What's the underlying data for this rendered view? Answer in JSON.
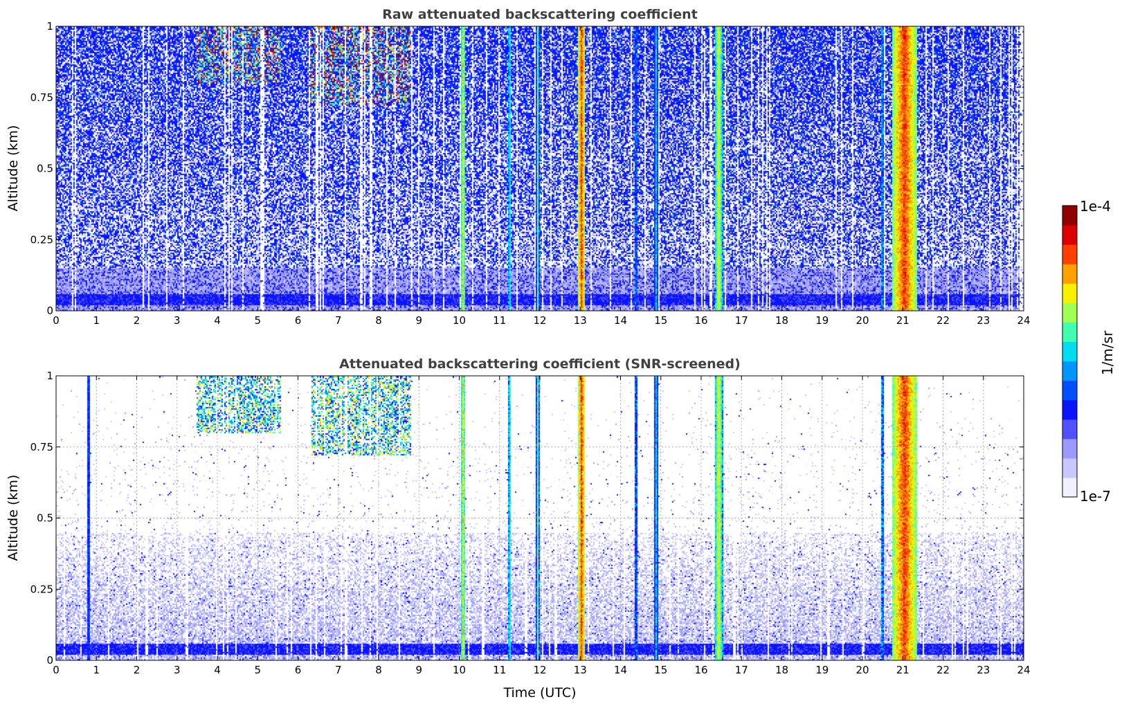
{
  "chart_data": [
    {
      "type": "heatmap",
      "title": "Raw attenuated backscattering coefficient",
      "xlabel": "",
      "ylabel": "Altitude (km)",
      "xlim": [
        0,
        24
      ],
      "ylim": [
        0,
        1
      ],
      "xticks": [
        "0",
        "1",
        "2",
        "3",
        "4",
        "5",
        "6",
        "7",
        "8",
        "9",
        "10",
        "11",
        "12",
        "13",
        "14",
        "15",
        "16",
        "17",
        "18",
        "19",
        "20",
        "21",
        "22",
        "23",
        "24"
      ],
      "yticks": [
        "0",
        "0.25",
        "0.5",
        "0.75",
        "1"
      ],
      "grid": false,
      "screened": false,
      "colorscale": "jet-log",
      "cloud_columns_utc": [
        {
          "t": 10.1,
          "width": 0.1,
          "level": 0.72,
          "base_km": 0.0
        },
        {
          "t": 11.25,
          "width": 0.08,
          "level": 0.6,
          "base_km": 0.0
        },
        {
          "t": 11.95,
          "width": 0.08,
          "level": 0.62,
          "base_km": 0.0
        },
        {
          "t": 13.05,
          "width": 0.18,
          "level": 0.85,
          "base_km": 0.0
        },
        {
          "t": 14.4,
          "width": 0.1,
          "level": 0.5,
          "base_km": 0.0
        },
        {
          "t": 14.9,
          "width": 0.1,
          "level": 0.52,
          "base_km": 0.0
        },
        {
          "t": 16.45,
          "width": 0.2,
          "level": 0.7,
          "base_km": 0.0
        },
        {
          "t": 20.5,
          "width": 0.08,
          "level": 0.55,
          "base_km": 0.0
        },
        {
          "t": 21.05,
          "width": 0.6,
          "level": 0.85,
          "base_km": 0.0
        }
      ],
      "upper_layers_utc": [
        {
          "t0": 3.5,
          "t1": 5.6,
          "bottom_km": 0.8,
          "level": 0.9
        },
        {
          "t0": 6.3,
          "t1": 8.8,
          "bottom_km": 0.72,
          "level": 0.9
        }
      ],
      "surface_layer_km": [
        0.02,
        0.06
      ]
    },
    {
      "type": "heatmap",
      "title": "Attenuated backscattering coefficient (SNR-screened)",
      "xlabel": "Time (UTC)",
      "ylabel": "Altitude (km)",
      "xlim": [
        0,
        24
      ],
      "ylim": [
        0,
        1
      ],
      "xticks": [
        "0",
        "1",
        "2",
        "3",
        "4",
        "5",
        "6",
        "7",
        "8",
        "9",
        "10",
        "11",
        "12",
        "13",
        "14",
        "15",
        "16",
        "17",
        "18",
        "19",
        "20",
        "21",
        "22",
        "23",
        "24"
      ],
      "yticks": [
        "0",
        "0.25",
        "0.5",
        "0.75",
        "1"
      ],
      "grid": true,
      "screened": true,
      "colorscale": "jet-log",
      "cloud_columns_utc": [
        {
          "t": 0.82,
          "width": 0.08,
          "level": 0.3,
          "base_km": 0.0
        },
        {
          "t": 10.1,
          "width": 0.1,
          "level": 0.72,
          "base_km": 0.0
        },
        {
          "t": 11.25,
          "width": 0.08,
          "level": 0.6,
          "base_km": 0.0
        },
        {
          "t": 11.95,
          "width": 0.08,
          "level": 0.62,
          "base_km": 0.0
        },
        {
          "t": 13.05,
          "width": 0.18,
          "level": 0.85,
          "base_km": 0.0
        },
        {
          "t": 14.4,
          "width": 0.1,
          "level": 0.5,
          "base_km": 0.0
        },
        {
          "t": 14.9,
          "width": 0.1,
          "level": 0.52,
          "base_km": 0.0
        },
        {
          "t": 16.45,
          "width": 0.2,
          "level": 0.7,
          "base_km": 0.0
        },
        {
          "t": 20.5,
          "width": 0.08,
          "level": 0.55,
          "base_km": 0.0
        },
        {
          "t": 21.05,
          "width": 0.6,
          "level": 0.85,
          "base_km": 0.0
        }
      ],
      "upper_layers_utc": [
        {
          "t0": 3.5,
          "t1": 5.6,
          "bottom_km": 0.8,
          "level": 0.75
        },
        {
          "t0": 6.3,
          "t1": 8.8,
          "bottom_km": 0.72,
          "level": 0.75
        }
      ],
      "surface_layer_km": [
        0.02,
        0.06
      ]
    }
  ],
  "colorbar": {
    "label": "1/m/sr",
    "max_label": "1e-4",
    "min_label": "1e-7",
    "colors": [
      "#f0f0ff",
      "#c8c8ff",
      "#9b9bff",
      "#5050ff",
      "#0a14ff",
      "#0050ff",
      "#0096ff",
      "#00dcf0",
      "#40ffb0",
      "#a0ff50",
      "#f8f000",
      "#ffa000",
      "#ff4000",
      "#dc0000",
      "#900000"
    ]
  }
}
